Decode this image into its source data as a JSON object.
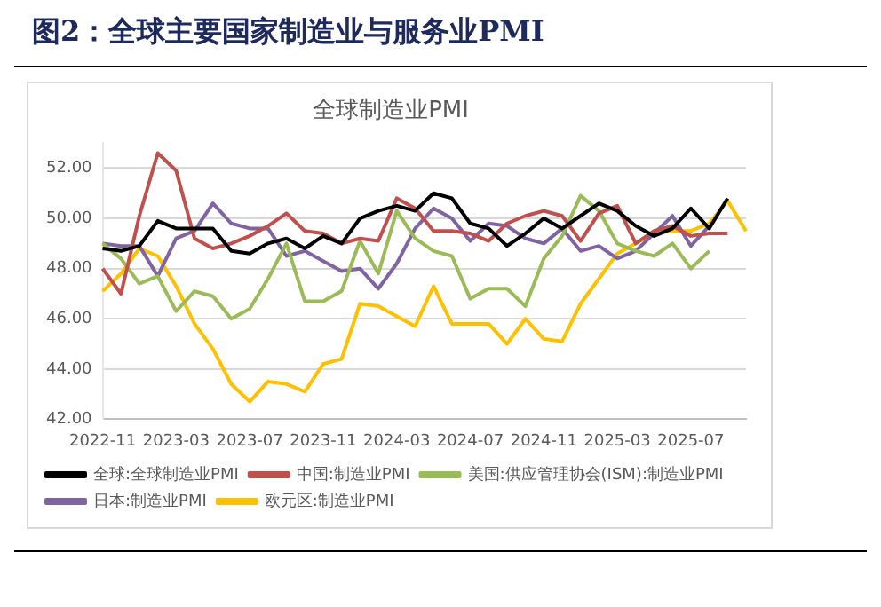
{
  "chart_data": {
    "type": "line",
    "title": "图2：全球主要国家制造业与服务业PMI",
    "subtitle": "全球制造业PMI",
    "categories": [
      "2022-11",
      null,
      null,
      null,
      "2023-03",
      null,
      null,
      null,
      "2023-07",
      null,
      null,
      null,
      "2023-11",
      null,
      null,
      null,
      "2024-03",
      null,
      null,
      null,
      "2024-07",
      null,
      null,
      null,
      "2024-11",
      null,
      null,
      null,
      "2025-03",
      null,
      null,
      null,
      "2025-07",
      null,
      null,
      null
    ],
    "series": [
      {
        "name": "全球:全球制造业PMI",
        "color": "#000000",
        "values": [
          48.8,
          48.7,
          48.9,
          49.9,
          49.6,
          49.6,
          49.6,
          48.7,
          48.6,
          49.0,
          49.2,
          48.8,
          49.3,
          49.0,
          50.0,
          50.3,
          50.5,
          50.3,
          51.0,
          50.8,
          49.8,
          49.6,
          48.9,
          49.4,
          50.0,
          49.6,
          50.1,
          50.6,
          50.3,
          49.7,
          49.3,
          49.6,
          50.4,
          49.6,
          50.8,
          null
        ]
      },
      {
        "name": "中国:制造业PMI",
        "color": "#c0504d",
        "values": [
          48.0,
          47.0,
          50.1,
          52.6,
          51.9,
          49.2,
          48.8,
          49.0,
          49.3,
          49.7,
          50.2,
          49.5,
          49.4,
          49.0,
          49.2,
          49.1,
          50.8,
          50.4,
          49.5,
          49.5,
          49.4,
          49.1,
          49.8,
          50.1,
          50.3,
          50.1,
          49.1,
          50.2,
          50.5,
          49.0,
          49.5,
          49.7,
          49.3,
          49.4,
          49.4,
          null
        ]
      },
      {
        "name": "美国:供应管理协会(ISM):制造业PMI",
        "color": "#9bbb59",
        "values": [
          49.0,
          48.4,
          47.4,
          47.7,
          46.3,
          47.1,
          46.9,
          46.0,
          46.4,
          47.6,
          49.0,
          46.7,
          46.7,
          47.1,
          49.1,
          47.8,
          50.3,
          49.2,
          48.7,
          48.5,
          46.8,
          47.2,
          47.2,
          46.5,
          48.4,
          49.3,
          50.9,
          50.3,
          49.0,
          48.7,
          48.5,
          49.0,
          48.0,
          48.7,
          null,
          null
        ]
      },
      {
        "name": "日本:制造业PMI",
        "color": "#8064a2",
        "values": [
          49.0,
          48.9,
          48.9,
          47.7,
          49.2,
          49.5,
          50.6,
          49.8,
          49.6,
          49.6,
          48.5,
          48.7,
          48.3,
          47.9,
          48.0,
          47.2,
          48.2,
          49.6,
          50.4,
          50.0,
          49.1,
          49.8,
          49.7,
          49.2,
          49.0,
          49.6,
          48.7,
          48.9,
          48.4,
          48.7,
          49.4,
          50.1,
          48.9,
          49.7,
          null,
          null
        ]
      },
      {
        "name": "欧元区:制造业PMI",
        "color": "#ffc000",
        "values": [
          47.1,
          47.8,
          48.8,
          48.5,
          47.3,
          45.8,
          44.8,
          43.4,
          42.7,
          43.5,
          43.4,
          43.1,
          44.2,
          44.4,
          46.6,
          46.5,
          46.1,
          45.7,
          47.3,
          45.8,
          45.8,
          45.8,
          45.0,
          46.0,
          45.2,
          45.1,
          46.6,
          47.6,
          48.6,
          49.0,
          49.4,
          49.5,
          49.5,
          49.8,
          50.7,
          49.5
        ]
      }
    ],
    "ylim": [
      42,
      53
    ],
    "yticks": [
      {
        "value": 42,
        "label": "42.00"
      },
      {
        "value": 44,
        "label": "44.00"
      },
      {
        "value": 46,
        "label": "46.00"
      },
      {
        "value": 48,
        "label": "48.00"
      },
      {
        "value": 50,
        "label": "50.00"
      },
      {
        "value": 52,
        "label": "52.00"
      }
    ],
    "grid": "y",
    "legend": "bottom",
    "marker": "none",
    "line_style": "solid"
  }
}
